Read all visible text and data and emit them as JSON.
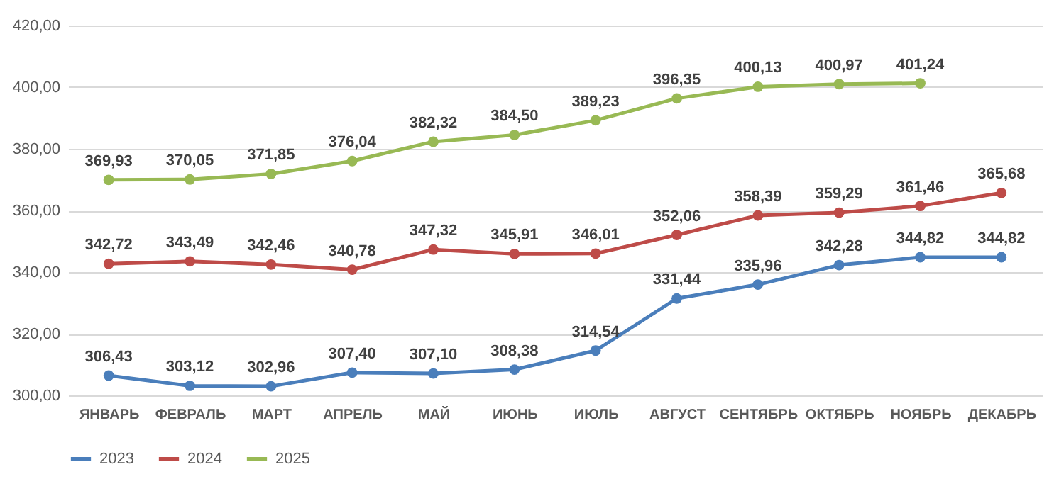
{
  "chart_data": {
    "type": "line",
    "categories": [
      "ЯНВАРЬ",
      "ФЕВРАЛЬ",
      "МАРТ",
      "АПРЕЛЬ",
      "МАЙ",
      "ИЮНЬ",
      "ИЮЛЬ",
      "АВГУСТ",
      "СЕНТЯБРЬ",
      "ОКТЯБРЬ",
      "НОЯБРЬ",
      "ДЕКАБРЬ"
    ],
    "series": [
      {
        "name": "2023",
        "color": "#4a7ebb",
        "values": [
          306.43,
          303.12,
          302.96,
          307.4,
          307.1,
          308.38,
          314.54,
          331.44,
          335.96,
          342.28,
          344.82,
          344.82
        ],
        "value_labels": [
          "306,43",
          "303,12",
          "302,96",
          "307,40",
          "307,10",
          "308,38",
          "314,54",
          "331,44",
          "335,96",
          "342,28",
          "344,82",
          "344,82"
        ]
      },
      {
        "name": "2024",
        "color": "#be4b48",
        "values": [
          342.72,
          343.49,
          342.46,
          340.78,
          347.32,
          345.91,
          346.01,
          352.06,
          358.39,
          359.29,
          361.46,
          365.68
        ],
        "value_labels": [
          "342,72",
          "343,49",
          "342,46",
          "340,78",
          "347,32",
          "345,91",
          "346,01",
          "352,06",
          "358,39",
          "359,29",
          "361,46",
          "365,68"
        ]
      },
      {
        "name": "2025",
        "color": "#98b954",
        "values": [
          369.93,
          370.05,
          371.85,
          376.04,
          382.32,
          384.5,
          389.23,
          396.35,
          400.13,
          400.97,
          401.24,
          null
        ],
        "value_labels": [
          "369,93",
          "370,05",
          "371,85",
          "376,04",
          "382,32",
          "384,50",
          "389,23",
          "396,35",
          "400,13",
          "400,97",
          "401,24",
          null
        ]
      }
    ],
    "ylim": [
      300,
      420
    ],
    "yticks": [
      {
        "value": 300,
        "label": "300,00"
      },
      {
        "value": 320,
        "label": "320,00"
      },
      {
        "value": 340,
        "label": "340,00"
      },
      {
        "value": 360,
        "label": "360,00"
      },
      {
        "value": 380,
        "label": "380,00"
      },
      {
        "value": 400,
        "label": "400,00"
      },
      {
        "value": 420,
        "label": "420,00"
      }
    ],
    "grid": "y",
    "legend": "bottom",
    "marker": "circle",
    "line_style": "solid"
  }
}
